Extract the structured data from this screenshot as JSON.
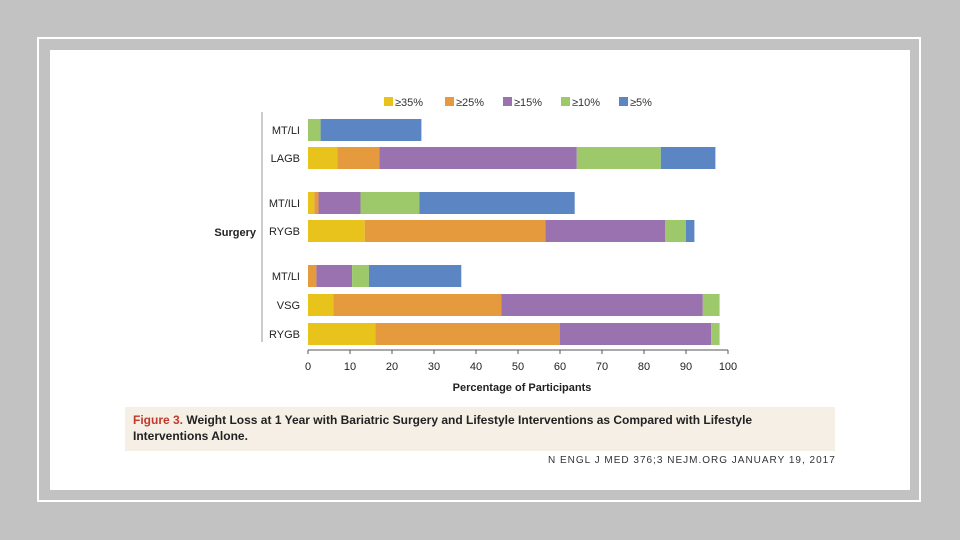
{
  "colors": {
    "ge35": "#e8c31c",
    "ge25": "#e59a3e",
    "ge15": "#9b72b0",
    "ge10": "#9dc96b",
    "ge5": "#5b86c3"
  },
  "chart_data": {
    "type": "bar",
    "orientation": "horizontal",
    "stacked": true,
    "legend": [
      "≥35%",
      "≥25%",
      "≥15%",
      "≥10%",
      "≥5%"
    ],
    "legend_position": "top",
    "group_label": "Surgery",
    "xlabel": "Percentage of Participants",
    "xlim": [
      0,
      100
    ],
    "xticks": [
      0,
      10,
      20,
      30,
      40,
      50,
      60,
      70,
      80,
      90,
      100
    ],
    "rows": [
      {
        "label": "MT/LI",
        "segments": [
          0,
          0,
          0,
          3,
          24
        ]
      },
      {
        "label": "LAGB",
        "segments": [
          7,
          10,
          47,
          20,
          13
        ]
      },
      {
        "label": "MT/ILI",
        "segments": [
          1.5,
          1,
          10,
          14,
          37
        ]
      },
      {
        "label": "RYGB",
        "segments": [
          13.5,
          43,
          28.5,
          5,
          2
        ]
      },
      {
        "label": "MT/LI",
        "segments": [
          0,
          2,
          8.5,
          4,
          22
        ]
      },
      {
        "label": "VSG",
        "segments": [
          6,
          40,
          48,
          4,
          0
        ]
      },
      {
        "label": "RYGB",
        "segments": [
          16,
          44,
          36,
          2,
          0
        ]
      }
    ]
  },
  "caption": {
    "label": "Figure 3.",
    "text": "Weight Loss at 1 Year with Bariatric Surgery and Lifestyle Interventions as Compared with Lifestyle Interventions Alone."
  },
  "citation": "N ENGL J MED 376;3    NEJM.ORG    JANUARY 19, 2017"
}
